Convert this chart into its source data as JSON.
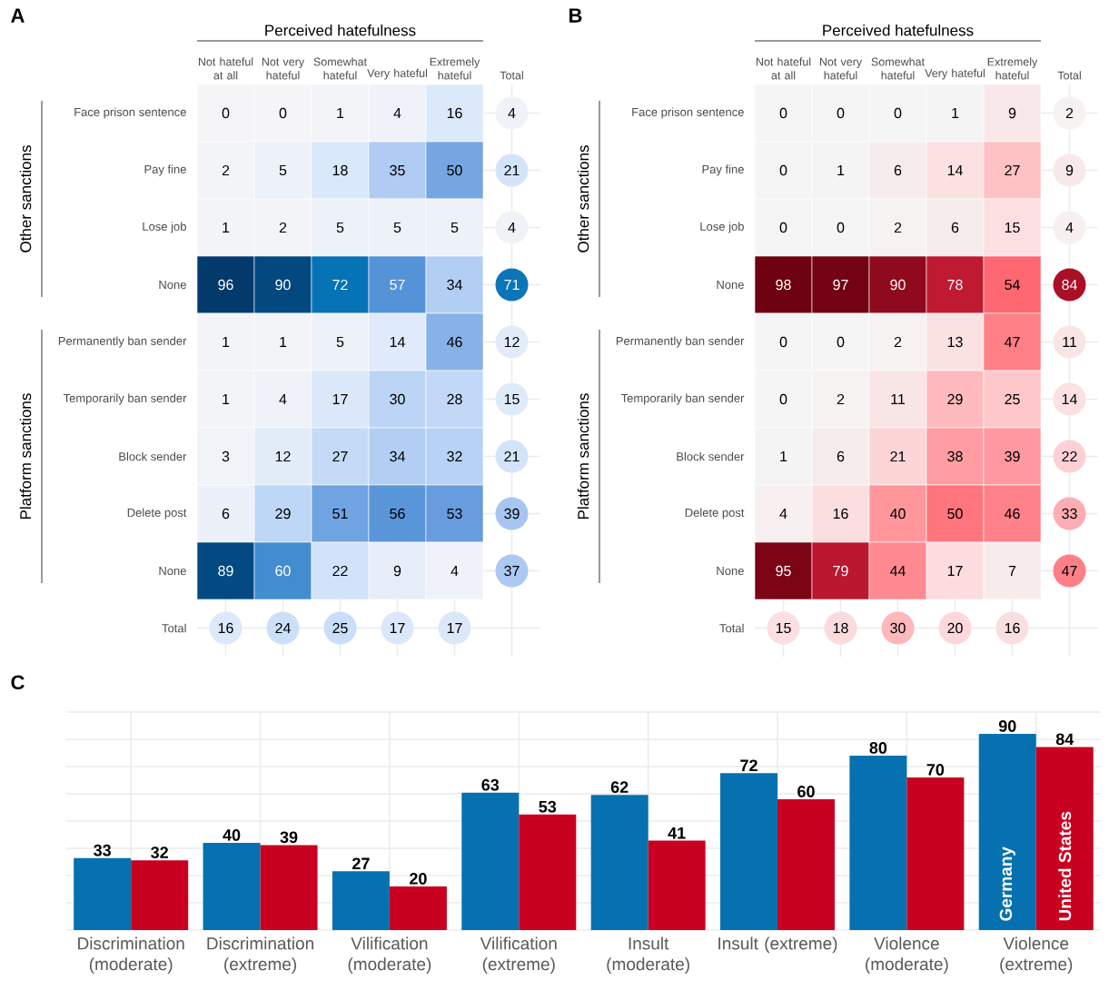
{
  "chart_data": [
    {
      "type": "heatmap",
      "title": "A",
      "xlabel": "Perceived hatefulness",
      "grid": true,
      "data_labels": true,
      "categories": [
        "Not hateful at all",
        "Not very hateful",
        "Somewhat hateful",
        "Very hateful",
        "Extremely hateful",
        "Total"
      ],
      "y_categories": [
        "Face prison sentence",
        "Pay fine",
        "Lose job",
        "None",
        "Permanently ban sender",
        "Temporarily ban sender",
        "Block sender",
        "Delete post",
        "None",
        "Total"
      ],
      "cells": [
        [
          0,
          0,
          1,
          4,
          16,
          4
        ],
        [
          2,
          5,
          18,
          35,
          50,
          21
        ],
        [
          1,
          2,
          5,
          5,
          5,
          4
        ],
        [
          96,
          90,
          72,
          57,
          34,
          71
        ],
        [
          1,
          1,
          5,
          14,
          46,
          12
        ],
        [
          1,
          4,
          17,
          30,
          28,
          15
        ],
        [
          3,
          12,
          27,
          34,
          32,
          21
        ],
        [
          6,
          29,
          51,
          56,
          53,
          39
        ],
        [
          89,
          60,
          22,
          9,
          4,
          37
        ],
        [
          16,
          24,
          25,
          17,
          17,
          null
        ]
      ],
      "annotations": [
        "Other sanctions",
        "Platform sanctions"
      ]
    },
    {
      "type": "heatmap",
      "title": "B",
      "xlabel": "Perceived hatefulness",
      "grid": true,
      "data_labels": true,
      "categories": [
        "Not hateful at all",
        "Not very hateful",
        "Somewhat hateful",
        "Very hateful",
        "Extremely hateful",
        "Total"
      ],
      "y_categories": [
        "Face prison sentence",
        "Pay fine",
        "Lose job",
        "None",
        "Permanently ban sender",
        "Temporarily ban sender",
        "Block sender",
        "Delete post",
        "None",
        "Total"
      ],
      "cells": [
        [
          0,
          0,
          0,
          1,
          9,
          2
        ],
        [
          0,
          1,
          6,
          14,
          27,
          9
        ],
        [
          0,
          0,
          2,
          6,
          15,
          4
        ],
        [
          98,
          97,
          90,
          78,
          54,
          84
        ],
        [
          0,
          0,
          2,
          13,
          47,
          11
        ],
        [
          0,
          2,
          11,
          29,
          25,
          14
        ],
        [
          1,
          6,
          21,
          38,
          39,
          22
        ],
        [
          4,
          16,
          40,
          50,
          46,
          33
        ],
        [
          95,
          79,
          44,
          17,
          7,
          47
        ],
        [
          15,
          18,
          30,
          20,
          16,
          null
        ]
      ],
      "annotations": [
        "Other sanctions",
        "Platform sanctions"
      ]
    },
    {
      "type": "bar",
      "title": "C",
      "data_labels": true,
      "grid": true,
      "tick_labels": "x",
      "categories": [
        "Discrimination (moderate)",
        "Discrimination (extreme)",
        "Vilification (moderate)",
        "Vilification (extreme)",
        "Insult (moderate)",
        "Insult (extreme)",
        "Violence (moderate)",
        "Violence (extreme)"
      ],
      "ylim": [
        0,
        100
      ],
      "yticks": [
        {
          "value": 0,
          "label": null
        },
        {
          "value": 12.5,
          "label": null
        },
        {
          "value": 25,
          "label": null
        },
        {
          "value": 37.5,
          "label": null
        },
        {
          "value": 50,
          "label": null
        },
        {
          "value": 62.5,
          "label": null
        },
        {
          "value": 75,
          "label": null
        },
        {
          "value": 87.5,
          "label": null
        },
        {
          "value": 100,
          "label": null
        }
      ],
      "series": [
        {
          "name": "Germany",
          "color": "#0571b0",
          "values": [
            33,
            40,
            27,
            63,
            62,
            72,
            80,
            90
          ]
        },
        {
          "name": "United States",
          "color": "#ca0020",
          "values": [
            32,
            39,
            20,
            53,
            41,
            60,
            70,
            84
          ]
        }
      ]
    }
  ]
}
